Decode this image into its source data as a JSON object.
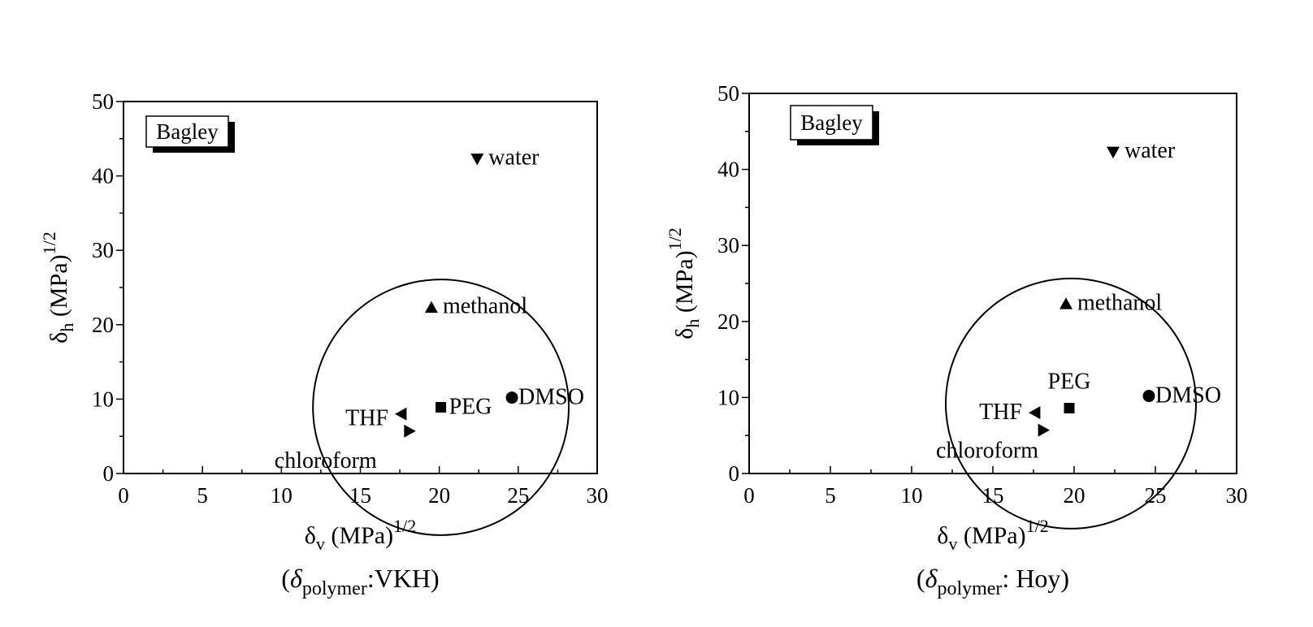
{
  "chart_data": [
    {
      "type": "scatter",
      "panel": "left",
      "legend_box": "Bagley",
      "xlabel": {
        "symbol": "δ",
        "sub": "v",
        "unit": "(MPa)",
        "sup": "1/2"
      },
      "ylabel": {
        "symbol": "δ",
        "sub": "h",
        "unit": "(MPa)",
        "sup": "1/2"
      },
      "caption": {
        "open": "(",
        "symbol": "δ",
        "sub": "polymer",
        "text": ":VKH)"
      },
      "xlim": [
        0,
        30
      ],
      "ylim": [
        0,
        50
      ],
      "xticks": [
        0,
        5,
        10,
        15,
        20,
        25,
        30
      ],
      "yticks": [
        0,
        10,
        20,
        30,
        40,
        50
      ],
      "x_tick_labels": [
        "0",
        "5",
        "10",
        "15",
        "20",
        "25",
        "30"
      ],
      "y_tick_labels": [
        "0",
        "10",
        "20",
        "30",
        "40",
        "50"
      ],
      "grid": false,
      "points": [
        {
          "label": "water",
          "marker": "triangle-down",
          "x": 22.4,
          "y": 42.3
        },
        {
          "label": "methanol",
          "marker": "triangle-up",
          "x": 19.5,
          "y": 22.3
        },
        {
          "label": "DMSO",
          "marker": "circle",
          "x": 24.6,
          "y": 10.2
        },
        {
          "label": "PEG",
          "marker": "square",
          "x": 20.1,
          "y": 8.9
        },
        {
          "label": "THF",
          "marker": "triangle-left",
          "x": 17.6,
          "y": 8.0
        },
        {
          "label": "chloroform",
          "marker": "triangle-right",
          "x": 18.1,
          "y": 5.7
        }
      ],
      "circle": {
        "center_x": 20.1,
        "center_y": 8.9,
        "radius": 8.1
      }
    },
    {
      "type": "scatter",
      "panel": "right",
      "legend_box": "Bagley",
      "xlabel": {
        "symbol": "δ",
        "sub": "v",
        "unit": "(MPa)",
        "sup": "1/2"
      },
      "ylabel": {
        "symbol": "δ",
        "sub": "h",
        "unit": "(MPa)",
        "sup": "1/2"
      },
      "caption": {
        "open": "(",
        "symbol": "δ",
        "sub": "polymer",
        "text": ": Hoy)"
      },
      "xlim": [
        0,
        30
      ],
      "ylim": [
        0,
        50
      ],
      "xticks": [
        0,
        5,
        10,
        15,
        20,
        25,
        30
      ],
      "yticks": [
        0,
        10,
        20,
        30,
        40,
        50
      ],
      "x_tick_labels": [
        "0",
        "5",
        "10",
        "15",
        "20",
        "25",
        "30"
      ],
      "y_tick_labels": [
        "0",
        "10",
        "20",
        "30",
        "40",
        "50"
      ],
      "grid": false,
      "points": [
        {
          "label": "water",
          "marker": "triangle-down",
          "x": 22.4,
          "y": 42.3
        },
        {
          "label": "methanol",
          "marker": "triangle-up",
          "x": 19.5,
          "y": 22.3
        },
        {
          "label": "DMSO",
          "marker": "circle",
          "x": 24.6,
          "y": 10.2
        },
        {
          "label": "PEG",
          "marker": "square",
          "x": 19.7,
          "y": 8.6
        },
        {
          "label": "THF",
          "marker": "triangle-left",
          "x": 17.6,
          "y": 8.0
        },
        {
          "label": "chloroform",
          "marker": "triangle-right",
          "x": 18.1,
          "y": 5.7
        }
      ],
      "circle": {
        "center_x": 19.8,
        "center_y": 9.2,
        "radius": 7.7
      }
    }
  ]
}
